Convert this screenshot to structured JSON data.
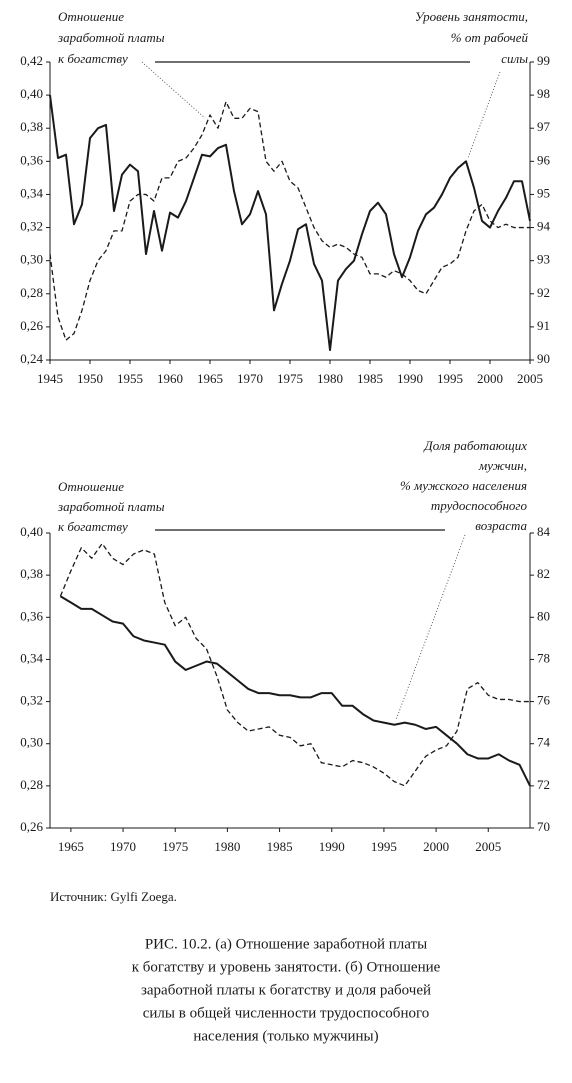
{
  "chart_data": [
    {
      "type": "line",
      "annotations": [
        {
          "lines": [
            "Отношение",
            "заработной платы",
            "к богатству"
          ]
        },
        {
          "lines": [
            "Уровень занятости,",
            "% от рабочей",
            "силы"
          ]
        }
      ],
      "x": [
        1945,
        1946,
        1947,
        1948,
        1949,
        1950,
        1951,
        1952,
        1953,
        1954,
        1955,
        1956,
        1957,
        1958,
        1959,
        1960,
        1961,
        1962,
        1963,
        1964,
        1965,
        1966,
        1967,
        1968,
        1969,
        1970,
        1971,
        1972,
        1973,
        1974,
        1975,
        1976,
        1977,
        1978,
        1979,
        1980,
        1981,
        1982,
        1983,
        1984,
        1985,
        1986,
        1987,
        1988,
        1989,
        1990,
        1991,
        1992,
        1993,
        1994,
        1995,
        1996,
        1997,
        1998,
        1999,
        2000,
        2001,
        2002,
        2003,
        2004,
        2005
      ],
      "xlim": [
        1945,
        2005
      ],
      "xticks": [
        1945,
        1950,
        1955,
        1960,
        1965,
        1970,
        1975,
        1980,
        1985,
        1990,
        1995,
        2000,
        2005
      ],
      "ylim": [
        0.24,
        0.42
      ],
      "yticks": [
        {
          "value": 0.24,
          "label": "0,24"
        },
        {
          "value": 0.26,
          "label": "0,26"
        },
        {
          "value": 0.28,
          "label": "0,28"
        },
        {
          "value": 0.3,
          "label": "0,30"
        },
        {
          "value": 0.32,
          "label": "0,32"
        },
        {
          "value": 0.34,
          "label": "0,34"
        },
        {
          "value": 0.36,
          "label": "0,36"
        },
        {
          "value": 0.38,
          "label": "0,38"
        },
        {
          "value": 0.4,
          "label": "0,40"
        },
        {
          "value": 0.42,
          "label": "0,42"
        }
      ],
      "y2lim": [
        90,
        99
      ],
      "y2ticks": [
        90,
        91,
        92,
        93,
        94,
        95,
        96,
        97,
        98,
        99
      ],
      "series": [
        {
          "color": "#1a1a1a",
          "style": "solid",
          "values": [
            0.4,
            0.362,
            0.364,
            0.322,
            0.334,
            0.374,
            0.38,
            0.382,
            0.33,
            0.352,
            0.358,
            0.354,
            0.304,
            0.33,
            0.306,
            0.329,
            0.326,
            0.336,
            0.35,
            0.364,
            0.363,
            0.368,
            0.37,
            0.342,
            0.322,
            0.328,
            0.342,
            0.328,
            0.27,
            0.286,
            0.3,
            0.319,
            0.322,
            0.298,
            0.288,
            0.246,
            0.288,
            0.295,
            0.3,
            0.316,
            0.33,
            0.335,
            0.328,
            0.304,
            0.29,
            0.302,
            0.318,
            0.328,
            0.332,
            0.34,
            0.35,
            0.356,
            0.36,
            0.344,
            0.324,
            0.32,
            0.33,
            0.338,
            0.348,
            0.348,
            0.324
          ]
        },
        {
          "color": "#1a1a1a",
          "style": "dashed",
          "axis": "y2",
          "values": [
            93.2,
            91.3,
            90.6,
            90.8,
            91.5,
            92.4,
            93.0,
            93.3,
            93.9,
            93.9,
            94.8,
            95.0,
            95.0,
            94.8,
            95.5,
            95.5,
            96.0,
            96.1,
            96.4,
            96.8,
            97.4,
            97.0,
            97.8,
            97.3,
            97.3,
            97.6,
            97.5,
            96.0,
            95.7,
            96.0,
            95.4,
            95.2,
            94.6,
            94.0,
            93.6,
            93.4,
            93.5,
            93.4,
            93.2,
            93.1,
            92.6,
            92.6,
            92.5,
            92.7,
            92.6,
            92.4,
            92.1,
            92.0,
            92.4,
            92.8,
            92.9,
            93.1,
            93.9,
            94.5,
            94.7,
            94.2,
            94.0,
            94.1,
            94.0,
            94.0,
            94.0
          ]
        }
      ]
    },
    {
      "type": "line",
      "annotations": [
        {
          "lines": [
            "Отношение",
            "заработной платы",
            "к богатству"
          ]
        },
        {
          "lines": [
            "Доля работающих",
            "мужчин,",
            "% мужского населения",
            "трудоспособного",
            "возраста"
          ]
        }
      ],
      "x": [
        1964,
        1965,
        1966,
        1967,
        1968,
        1969,
        1970,
        1971,
        1972,
        1973,
        1974,
        1975,
        1976,
        1977,
        1978,
        1979,
        1980,
        1981,
        1982,
        1983,
        1984,
        1985,
        1986,
        1987,
        1988,
        1989,
        1990,
        1991,
        1992,
        1993,
        1994,
        1995,
        1996,
        1997,
        1998,
        1999,
        2000,
        2001,
        2002,
        2003,
        2004,
        2005,
        2006,
        2007,
        2008,
        2009
      ],
      "xlim": [
        1963,
        2009
      ],
      "xticks": [
        1965,
        1970,
        1975,
        1980,
        1985,
        1990,
        1995,
        2000,
        2005
      ],
      "ylim": [
        0.26,
        0.4
      ],
      "yticks": [
        {
          "value": 0.26,
          "label": "0,26"
        },
        {
          "value": 0.28,
          "label": "0,28"
        },
        {
          "value": 0.3,
          "label": "0,30"
        },
        {
          "value": 0.32,
          "label": "0,32"
        },
        {
          "value": 0.34,
          "label": "0,34"
        },
        {
          "value": 0.36,
          "label": "0,36"
        },
        {
          "value": 0.38,
          "label": "0,38"
        },
        {
          "value": 0.4,
          "label": "0,40"
        }
      ],
      "y2lim": [
        70,
        84
      ],
      "y2ticks": [
        70,
        72,
        74,
        76,
        78,
        80,
        82,
        84
      ],
      "series": [
        {
          "color": "#1a1a1a",
          "style": "solid",
          "values": [
            0.37,
            0.367,
            0.364,
            0.364,
            0.361,
            0.358,
            0.357,
            0.351,
            0.349,
            0.348,
            0.347,
            0.339,
            0.335,
            0.337,
            0.339,
            0.338,
            0.334,
            0.33,
            0.326,
            0.324,
            0.324,
            0.323,
            0.323,
            0.322,
            0.322,
            0.324,
            0.324,
            0.318,
            0.318,
            0.314,
            0.311,
            0.31,
            0.309,
            0.31,
            0.309,
            0.307,
            0.308,
            0.304,
            0.3,
            0.295,
            0.293,
            0.293,
            0.295,
            0.292,
            0.29,
            0.28
          ]
        },
        {
          "color": "#1a1a1a",
          "style": "dashed",
          "axis": "y2",
          "values": [
            81.0,
            82.2,
            83.3,
            82.8,
            83.5,
            82.8,
            82.5,
            83.0,
            83.2,
            83.0,
            80.7,
            79.6,
            80.0,
            79.0,
            78.5,
            77.2,
            75.6,
            75.0,
            74.6,
            74.7,
            74.8,
            74.4,
            74.3,
            73.9,
            74.0,
            73.1,
            73.0,
            72.9,
            73.2,
            73.1,
            72.9,
            72.6,
            72.2,
            72.0,
            72.7,
            73.4,
            73.7,
            73.9,
            74.6,
            76.6,
            76.9,
            76.3,
            76.1,
            76.1,
            76.0,
            76.0
          ]
        }
      ]
    }
  ],
  "source": "Источник: Gylfi Zoega.",
  "caption": [
    "РИС. 10.2. (а) Отношение заработной платы",
    "к богатству и уровень занятости. (б) Отношение",
    "заработной платы к богатству и доля рабочей",
    "силы в общей численности трудоспособного",
    "населения (только мужчины)"
  ]
}
